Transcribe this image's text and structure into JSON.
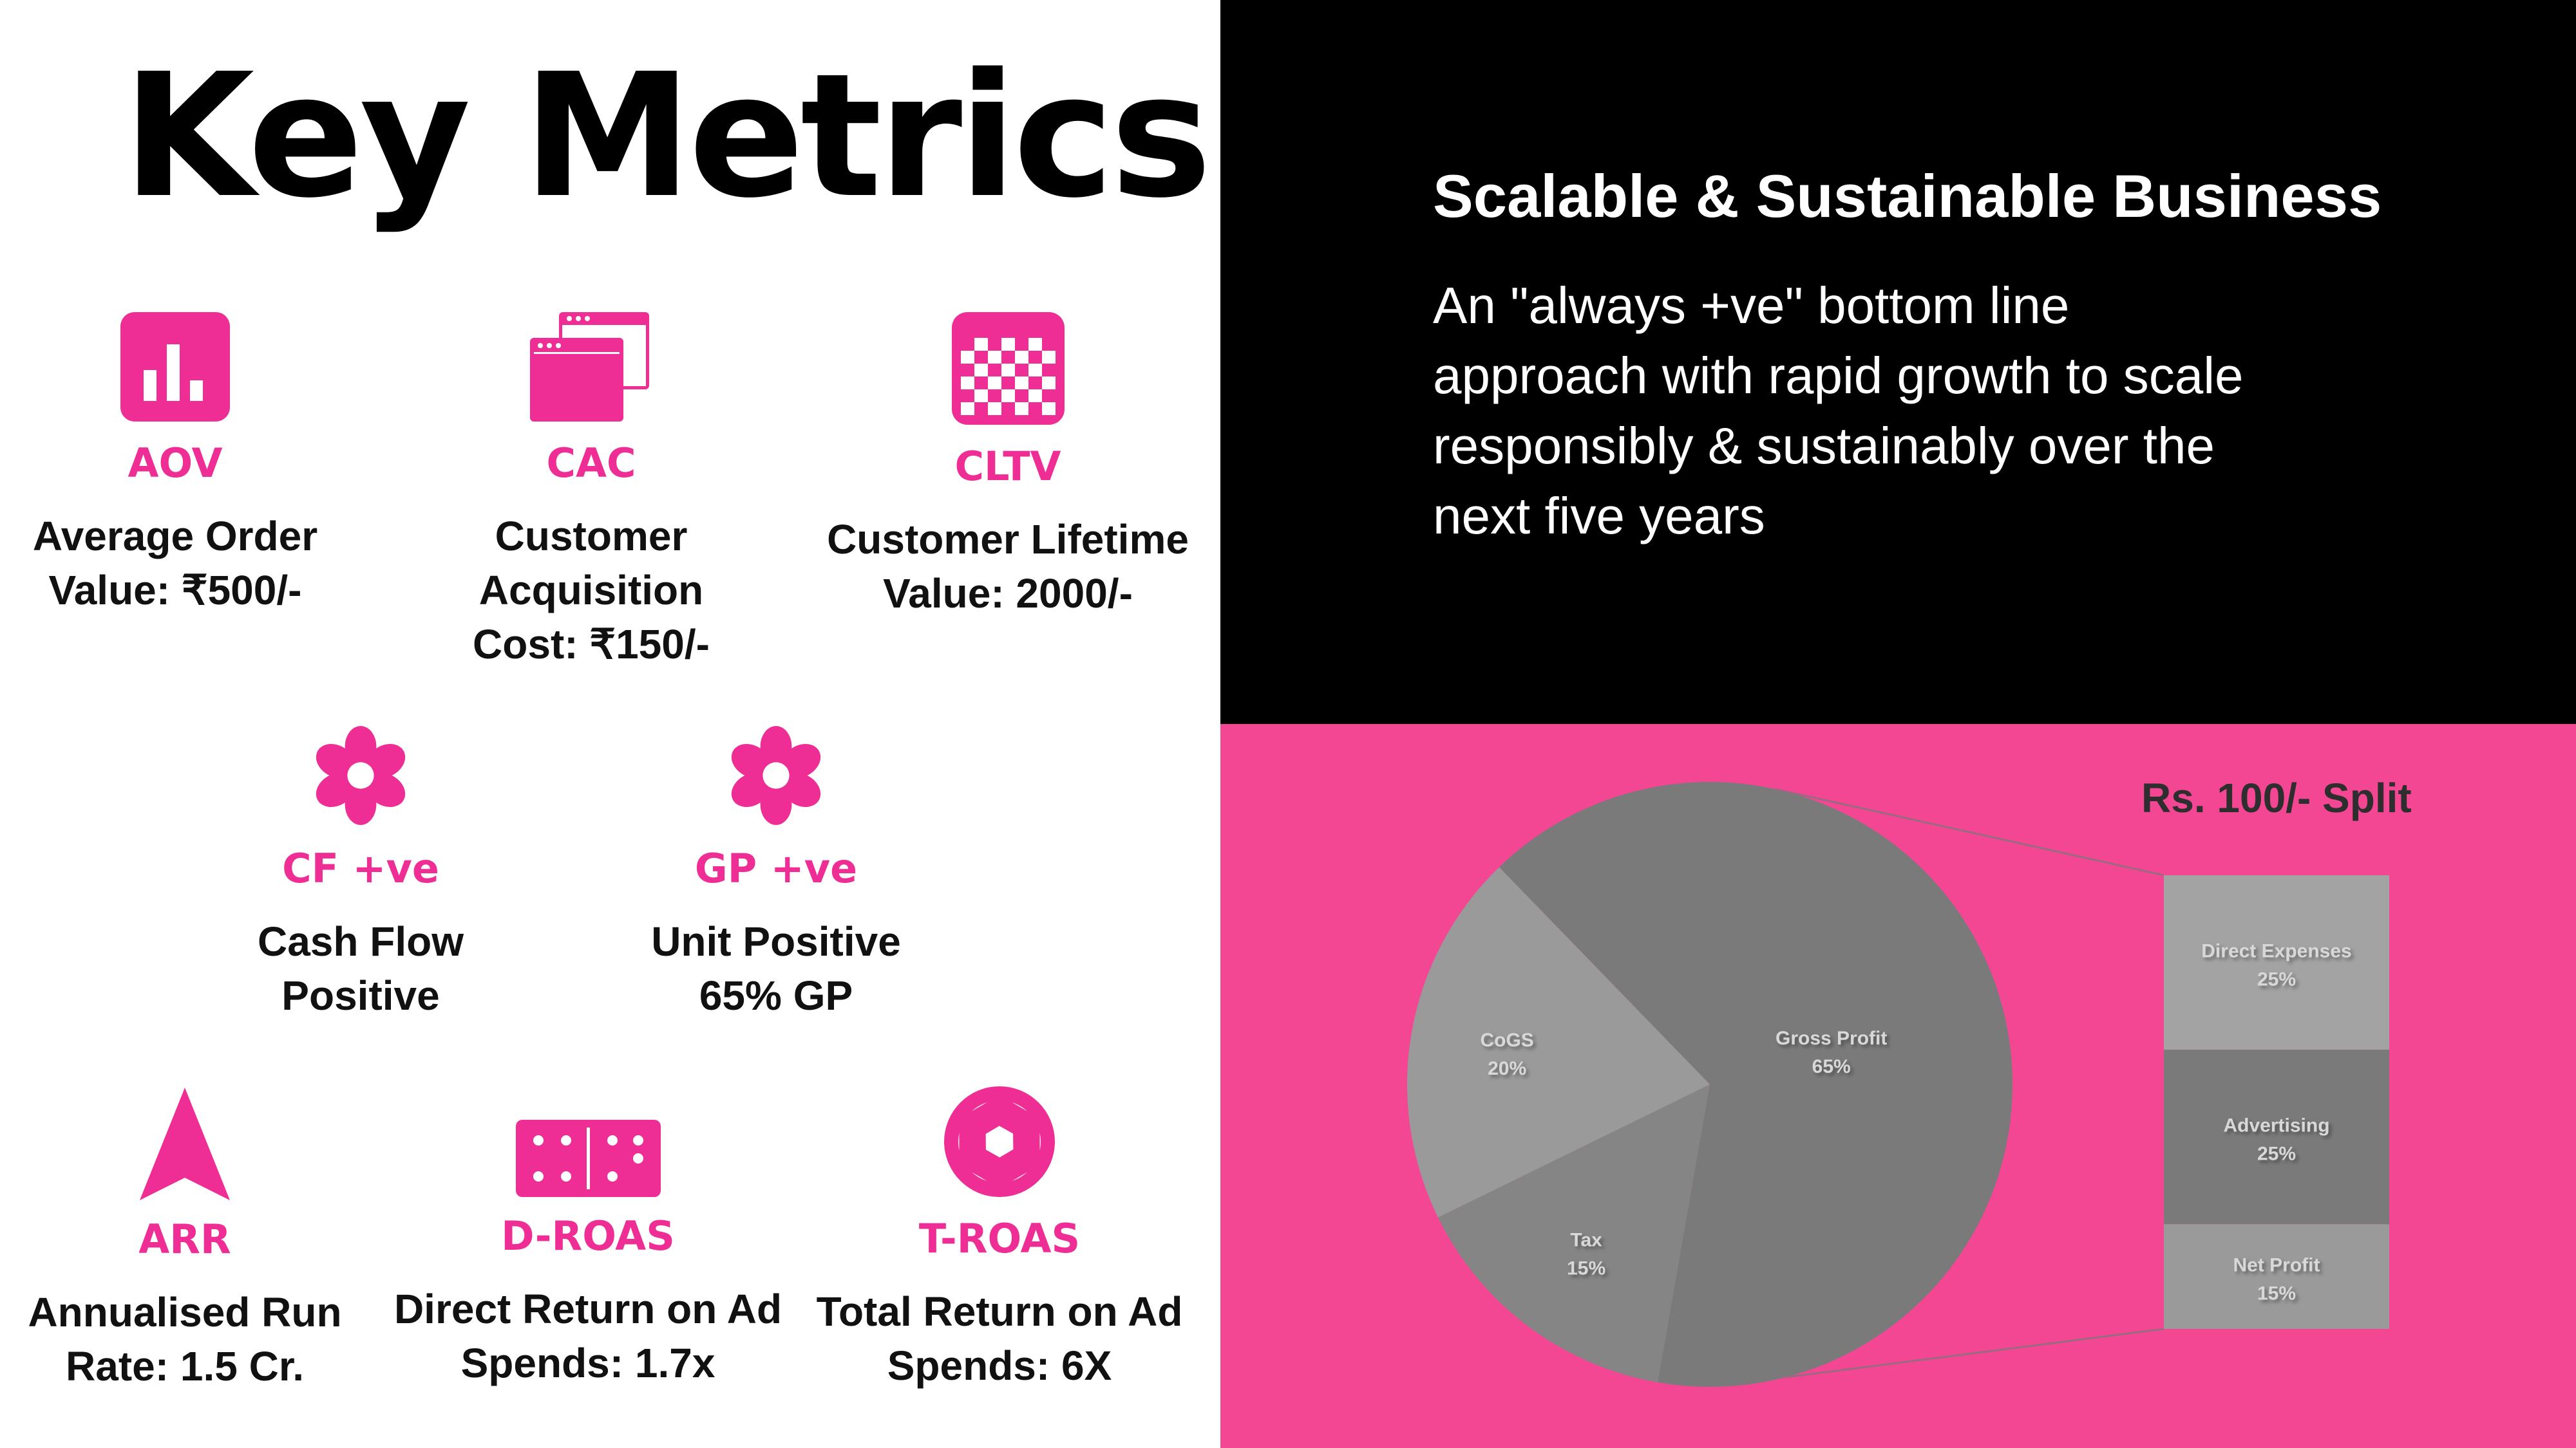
{
  "slide": {
    "title": "Key Metrics",
    "accent_color": "#ee2e94",
    "pink_panel_color": "#f34794"
  },
  "metrics": [
    {
      "icon": "bar-chart-icon",
      "abbr": "AOV",
      "desc_line1": "Average Order",
      "desc_line2": "Value: ₹500/-"
    },
    {
      "icon": "browser-windows-icon",
      "abbr": "CAC",
      "desc_line1": "Customer Acquisition",
      "desc_line2": "Cost: ₹150/-"
    },
    {
      "icon": "checkered-calendar-icon",
      "abbr": "CLTV",
      "desc_line1": "Customer Lifetime",
      "desc_line2": "Value: 2000/-"
    },
    {
      "icon": "flower-icon",
      "abbr": "CF +ve",
      "desc_line1": "Cash Flow",
      "desc_line2": "Positive"
    },
    {
      "icon": "flower-icon",
      "abbr": "GP +ve",
      "desc_line1": "Unit Positive",
      "desc_line2": "65% GP"
    },
    {
      "icon": "navigation-arrow-icon",
      "abbr": "ARR",
      "desc_line1": "Annualised Run",
      "desc_line2": "Rate: 1.5 Cr."
    },
    {
      "icon": "domino-icon",
      "abbr": "D-ROAS",
      "desc_line1": "Direct Return on Ad",
      "desc_line2": "Spends: 1.7x"
    },
    {
      "icon": "camera-aperture-icon",
      "abbr": "T-ROAS",
      "desc_line1": "Total Return on Ad",
      "desc_line2": "Spends: 6X"
    }
  ],
  "business": {
    "heading": "Scalable & Sustainable Business",
    "body_lines": [
      "An \"always +ve\" bottom line",
      "approach with rapid growth to scale",
      "responsibly & sustainably over the",
      "next five years"
    ]
  },
  "chart_data": {
    "type": "pie",
    "title": "Rs. 100/- Split",
    "slices": [
      {
        "label": "Gross Profit",
        "value": 65,
        "display": "65%",
        "color": "#7a7a7a"
      },
      {
        "label": "Tax",
        "value": 15,
        "display": "15%",
        "color": "#858585"
      },
      {
        "label": "CoGS",
        "value": 20,
        "display": "20%",
        "color": "#9a9a9a"
      }
    ],
    "breakdown_of": "Gross Profit",
    "breakdown": [
      {
        "label": "Direct Expenses",
        "value": 25,
        "display": "25%",
        "color": "#a3a3a3"
      },
      {
        "label": "Advertising",
        "value": 25,
        "display": "25%",
        "color": "#7a7a7a"
      },
      {
        "label": "Net Profit",
        "value": 15,
        "display": "15%",
        "color": "#9a9a9a"
      }
    ]
  }
}
